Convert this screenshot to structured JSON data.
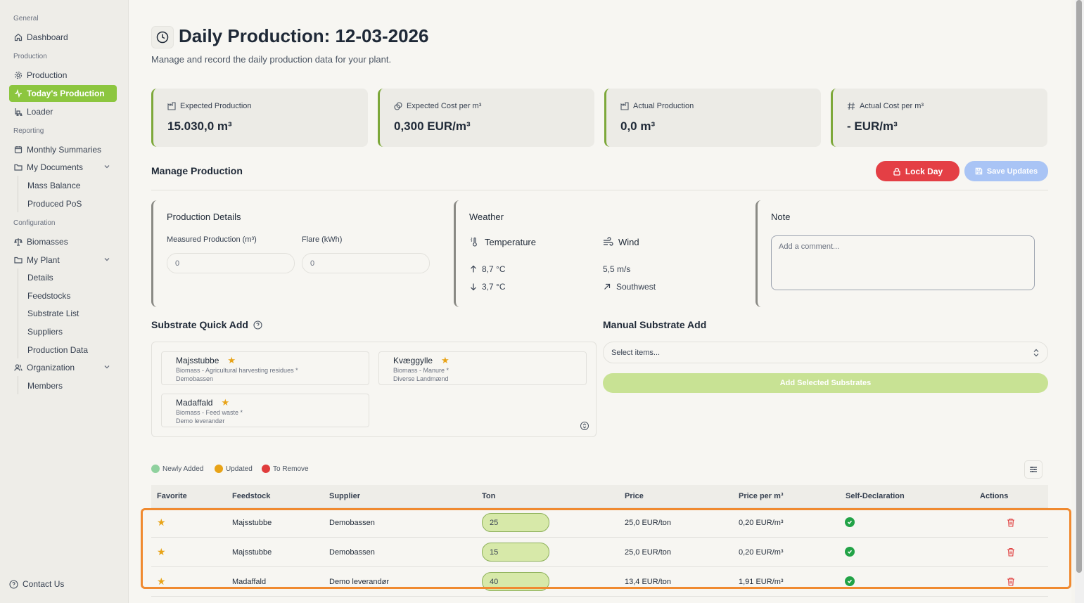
{
  "sidebar": {
    "sections": {
      "general": "General",
      "production": "Production",
      "reporting": "Reporting",
      "configuration": "Configuration"
    },
    "items": {
      "dashboard": "Dashboard",
      "production": "Production",
      "todays_production": "Today's Production",
      "loader": "Loader",
      "monthly_summaries": "Monthly Summaries",
      "my_documents": "My Documents",
      "mass_balance": "Mass Balance",
      "produced_pos": "Produced PoS",
      "biomasses": "Biomasses",
      "my_plant": "My Plant",
      "details": "Details",
      "feedstocks": "Feedstocks",
      "substrate_list": "Substrate List",
      "suppliers": "Suppliers",
      "production_data": "Production Data",
      "organization": "Organization",
      "members": "Members"
    },
    "contact": "Contact Us"
  },
  "header": {
    "title": "Daily Production: 12-03-2026",
    "subtitle": "Manage and record the daily production data for your plant."
  },
  "stats": [
    {
      "label": "Expected Production",
      "value": "15.030,0 m³"
    },
    {
      "label": "Expected Cost per m³",
      "value": "0,300 EUR/m³"
    },
    {
      "label": "Actual Production",
      "value": "0,0 m³"
    },
    {
      "label": "Actual Cost per m³",
      "value": "- EUR/m³"
    }
  ],
  "manage": {
    "title": "Manage Production",
    "lock_label": "Lock Day",
    "save_label": "Save Updates"
  },
  "production_details": {
    "title": "Production Details",
    "measured_label": "Measured Production (m³)",
    "measured_value": "0",
    "flare_label": "Flare (kWh)",
    "flare_value": "0"
  },
  "weather": {
    "title": "Weather",
    "temperature_label": "Temperature",
    "temp_high": "8,7 °C",
    "temp_low": "3,7 °C",
    "wind_label": "Wind",
    "wind_speed": "5,5 m/s",
    "wind_direction": "Southwest"
  },
  "note": {
    "title": "Note",
    "placeholder": "Add a comment..."
  },
  "quick_add": {
    "title": "Substrate Quick Add",
    "items": [
      {
        "name": "Majsstubbe",
        "category": "Biomass - Agricultural harvesting residues *",
        "supplier": "Demobassen"
      },
      {
        "name": "Kvæggylle",
        "category": "Biomass - Manure *",
        "supplier": "Diverse Landmænd"
      },
      {
        "name": "Madaffald",
        "category": "Biomass - Feed waste *",
        "supplier": "Demo leverandør"
      }
    ]
  },
  "manual_add": {
    "title": "Manual Substrate Add",
    "select_placeholder": "Select items...",
    "add_label": "Add Selected Substrates"
  },
  "legend": {
    "new": "Newly Added",
    "updated": "Updated",
    "remove": "To Remove",
    "colors": {
      "new": "#8fd19e",
      "updated": "#e8a317",
      "remove": "#e03c3c"
    }
  },
  "table": {
    "columns": [
      "Favorite",
      "Feedstock",
      "Supplier",
      "Ton",
      "Price",
      "Price per m³",
      "Self-Declaration",
      "Actions"
    ],
    "rows": [
      {
        "feedstock": "Majsstubbe",
        "supplier": "Demobassen",
        "ton": "25",
        "price": "25,0 EUR/ton",
        "price_m3": "0,20 EUR/m³"
      },
      {
        "feedstock": "Majsstubbe",
        "supplier": "Demobassen",
        "ton": "15",
        "price": "25,0 EUR/ton",
        "price_m3": "0,20 EUR/m³"
      },
      {
        "feedstock": "Madaffald",
        "supplier": "Demo leverandør",
        "ton": "40",
        "price": "13,4 EUR/ton",
        "price_m3": "1,91 EUR/m³"
      }
    ]
  },
  "colors": {
    "accent": "#8cc63f",
    "lock": "#e43f45",
    "save": "#a9c4f5",
    "highlight": "#f08a30"
  }
}
